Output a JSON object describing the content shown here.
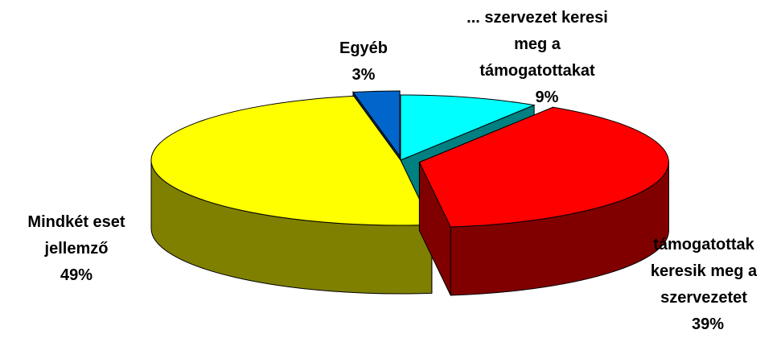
{
  "chart_data": {
    "type": "pie",
    "categories": [
      "... szervezet keresi meg a támogatottakat",
      "támogatottak keresik meg a szervezetet",
      "Mindkét eset jellemző",
      "Egyéb"
    ],
    "values": [
      9,
      39,
      49,
      3
    ],
    "value_labels": [
      "9%",
      "39%",
      "49%",
      "3%"
    ],
    "colors": [
      "#00ffff",
      "#ff0000",
      "#ffff00",
      "#0066cc"
    ],
    "side_colors": [
      "#008080",
      "#800000",
      "#808000",
      "#003366"
    ]
  }
}
